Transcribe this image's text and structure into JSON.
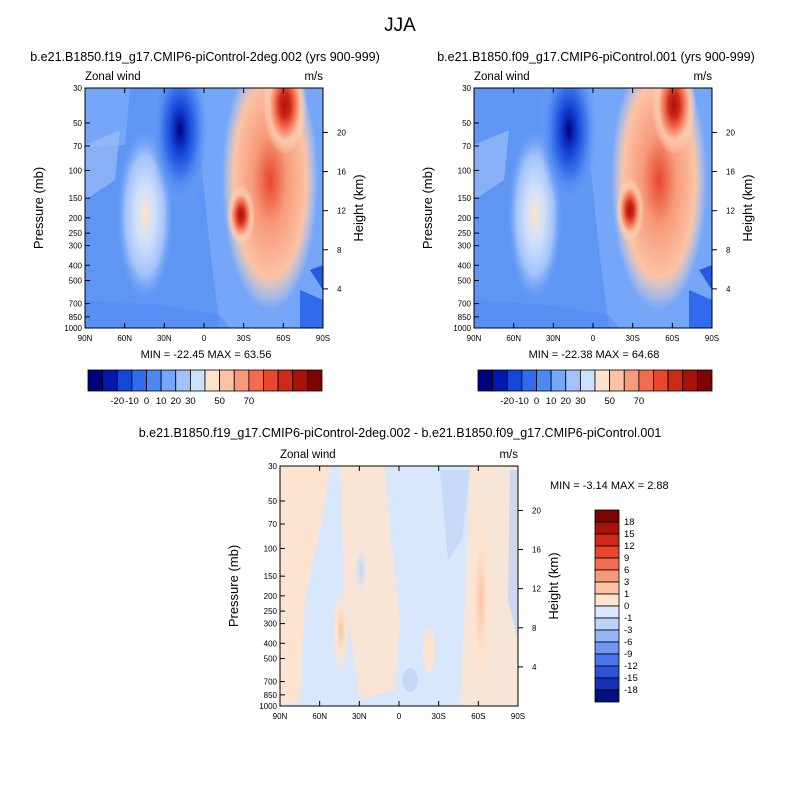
{
  "page_title": "JJA",
  "panel_left": {
    "title": "b.e21.B1850.f19_g17.CMIP6-piControl-2deg.002 (yrs 900-999)",
    "field_label": "Zonal wind",
    "units": "m/s",
    "ylabel": "Pressure (mb)",
    "ylabel_right": "Height (km)",
    "minmax": "MIN = -22.45   MAX =  63.56"
  },
  "panel_right": {
    "title": "b.e21.B1850.f09_g17.CMIP6-piControl.001 (yrs 900-999)",
    "field_label": "Zonal wind",
    "units": "m/s",
    "ylabel": "Pressure (mb)",
    "ylabel_right": "Height (km)",
    "minmax": "MIN = -22.38   MAX =  64.68"
  },
  "panel_diff": {
    "title": "b.e21.B1850.f19_g17.CMIP6-piControl-2deg.002 - b.e21.B1850.f09_g17.CMIP6-piControl.001",
    "field_label": "Zonal wind",
    "units": "m/s",
    "ylabel": "Pressure (mb)",
    "ylabel_right": "Height (km)",
    "minmax": "MIN =  -3.14   MAX =   2.88"
  },
  "chart_data": [
    {
      "type": "heatmap",
      "title": "b.e21.B1850.f19_g17.CMIP6-piControl-2deg.002 (yrs 900-999)",
      "x_ticks": [
        "90N",
        "60N",
        "30N",
        "0",
        "30S",
        "60S",
        "90S"
      ],
      "y_ticks": [
        30,
        50,
        70,
        100,
        150,
        200,
        250,
        300,
        400,
        500,
        700,
        850,
        1000
      ],
      "y_right_ticks": [
        4,
        8,
        12,
        16,
        20
      ],
      "ylim": [
        1000,
        30
      ],
      "y_scale": "log",
      "features": [
        {
          "lat": -60,
          "p": 30,
          "u": 63.56
        },
        {
          "lat": -30,
          "p": 200,
          "u": 45
        },
        {
          "lat": 45,
          "p": 200,
          "u": 15
        },
        {
          "lat": 15,
          "p": 30,
          "u": -22.45
        }
      ],
      "colorbar": {
        "levels": [
          -20,
          -10,
          0,
          10,
          20,
          30,
          40,
          50,
          60,
          70
        ],
        "labels": [
          -20,
          -10,
          0,
          10,
          20,
          30,
          50,
          70
        ]
      }
    },
    {
      "type": "heatmap",
      "title": "b.e21.B1850.f09_g17.CMIP6-piControl.001 (yrs 900-999)",
      "x_ticks": [
        "90N",
        "60N",
        "30N",
        "0",
        "30S",
        "60S",
        "90S"
      ],
      "y_ticks": [
        30,
        50,
        70,
        100,
        150,
        200,
        250,
        300,
        400,
        500,
        700,
        850,
        1000
      ],
      "y_right_ticks": [
        4,
        8,
        12,
        16,
        20
      ],
      "ylim": [
        1000,
        30
      ],
      "y_scale": "log",
      "features": [
        {
          "lat": -60,
          "p": 30,
          "u": 64.68
        },
        {
          "lat": -30,
          "p": 200,
          "u": 46
        },
        {
          "lat": 45,
          "p": 200,
          "u": 14
        },
        {
          "lat": 15,
          "p": 30,
          "u": -22.38
        }
      ],
      "colorbar": {
        "levels": [
          -20,
          -10,
          0,
          10,
          20,
          30,
          40,
          50,
          60,
          70
        ],
        "labels": [
          -20,
          -10,
          0,
          10,
          20,
          30,
          50,
          70
        ]
      }
    },
    {
      "type": "heatmap",
      "title": "b.e21.B1850.f19_g17.CMIP6-piControl-2deg.002 - b.e21.B1850.f09_g17.CMIP6-piControl.001",
      "x_ticks": [
        "90N",
        "60N",
        "30N",
        "0",
        "30S",
        "60S",
        "90S"
      ],
      "y_ticks": [
        30,
        50,
        70,
        100,
        150,
        200,
        250,
        300,
        400,
        500,
        700,
        850,
        1000
      ],
      "y_right_ticks": [
        4,
        8,
        12,
        16,
        20
      ],
      "ylim": [
        1000,
        30
      ],
      "y_scale": "log",
      "features": [
        {
          "lat": -55,
          "p": 150,
          "u": 2.88
        },
        {
          "lat": 40,
          "p": 300,
          "u": 1.5
        },
        {
          "lat": 25,
          "p": 250,
          "u": -3.14
        }
      ],
      "colorbar": {
        "levels": [
          18,
          15,
          12,
          9,
          6,
          3,
          1,
          0,
          -1,
          -3,
          -6,
          -9,
          -12,
          -15,
          -18
        ],
        "labels": [
          18,
          15,
          12,
          9,
          6,
          3,
          1,
          0,
          -1,
          -3,
          -6,
          -9,
          -12,
          -15,
          -18
        ]
      }
    }
  ],
  "palette_full": [
    "#00007f",
    "#0019b0",
    "#1446d8",
    "#2f6bec",
    "#4d88f3",
    "#75a6f7",
    "#a3c2f9",
    "#cde0fb",
    "#fde4d0",
    "#fbc3a4",
    "#f79a7a",
    "#f26d50",
    "#e8462d",
    "#cf2a18",
    "#a81308",
    "#7d0404"
  ],
  "palette_diff": [
    "#7d0404",
    "#a81308",
    "#cf2a18",
    "#e8462d",
    "#f26d50",
    "#f79a7a",
    "#fbc3a4",
    "#fde4d0",
    "#d8e7fb",
    "#bcd2f9",
    "#93b4f6",
    "#6f97f2",
    "#4a75ea",
    "#2d52d8",
    "#1432b0",
    "#00117f"
  ]
}
